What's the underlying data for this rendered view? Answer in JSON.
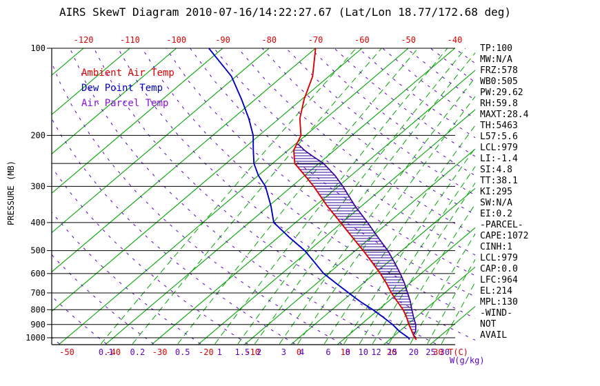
{
  "title": "AIRS SkewT Diagram 2010-07-16/14:22:27.67 (Lat/Lon 18.77/172.68 deg)",
  "legend": {
    "ambient": "Ambient Air Temp",
    "dew": "Dew Point Temp",
    "parcel": "Air Parcel Temp"
  },
  "axes": {
    "pressure_label": "PRESSURE (MB)",
    "pressure_ticks": [
      100,
      200,
      300,
      400,
      500,
      600,
      700,
      800,
      900,
      1000
    ],
    "extra_pressure_lines": [
      250
    ],
    "top_temp_labels": [
      -120,
      -110,
      -100,
      -90,
      -80,
      -70,
      -60,
      -50,
      -40
    ],
    "bottom_temp_labels": [
      -50,
      -40,
      -30,
      -20,
      -10,
      0,
      10,
      20,
      30
    ],
    "mixing_ratio_labels": [
      0.1,
      0.2,
      0.5,
      1,
      1.5,
      2,
      3,
      4,
      6,
      8,
      10,
      12,
      15,
      20,
      25,
      30
    ],
    "temp_unit_label": "T(C)",
    "mixing_unit_label": "W(g/kg)"
  },
  "stats_panel": [
    "TP:100",
    "MW:N/A",
    "FRZ:578",
    "WB0:505",
    "PW:29.62",
    "RH:59.8",
    "MAXT:28.4",
    "TH:5463",
    "L57:5.6",
    "LCL:979",
    "LI:-1.4",
    "SI:4.8",
    "TT:38.1",
    "KI:295",
    "SW:N/A",
    "EI:0.2",
    "-PARCEL-",
    "CAPE:1072",
    "CINH:1",
    "LCL:979",
    "CAP:0.0",
    "LFC:964",
    "EL:214",
    "MPL:130",
    "-WIND-",
    "NOT",
    "AVAIL"
  ],
  "colors": {
    "background": "#ffffff",
    "isotherm": "#00a400",
    "mixing_ratio": "#00a400",
    "dry_adiabat": "#5a00c8",
    "ambient": "#dd0000",
    "dew_point": "#0000c0",
    "parcel": "#3a00a0",
    "hatch": "#2e0096",
    "legend_parcel": "#8a10e0",
    "temp_labels": "#dd0000",
    "mixing_labels": "#5a00c8",
    "axis": "#000000"
  },
  "chart_data": {
    "type": "line",
    "title": "AIRS SkewT Diagram 2010-07-16/14:22:27.67 (Lat/Lon 18.77/172.68 deg)",
    "xlabel": "T(C)",
    "ylabel": "PRESSURE (MB)",
    "y_scale": "log-inverted",
    "pressure_range_mb": [
      100,
      1050
    ],
    "skew": "isotherms slope up-right about 45deg",
    "series": [
      {
        "name": "Ambient Air Temp",
        "color_key": "ambient",
        "points_pressure_mb_temp_C": [
          [
            100,
            -70
          ],
          [
            125,
            -63.5
          ],
          [
            150,
            -59.5
          ],
          [
            175,
            -55.5
          ],
          [
            200,
            -51
          ],
          [
            225,
            -48.8
          ],
          [
            250,
            -45.2
          ],
          [
            275,
            -40
          ],
          [
            300,
            -35.3
          ],
          [
            350,
            -27.5
          ],
          [
            400,
            -20.3
          ],
          [
            450,
            -14
          ],
          [
            500,
            -8.3
          ],
          [
            550,
            -3.3
          ],
          [
            600,
            1.2
          ],
          [
            650,
            5.1
          ],
          [
            700,
            8.5
          ],
          [
            750,
            12
          ],
          [
            800,
            15.3
          ],
          [
            850,
            18
          ],
          [
            900,
            20.3
          ],
          [
            950,
            22.7
          ],
          [
            1000,
            24.9
          ],
          [
            1015,
            25.8
          ]
        ]
      },
      {
        "name": "Dew Point Temp",
        "color_key": "dew_point",
        "points_pressure_mb_temp_C": [
          [
            100,
            -93
          ],
          [
            125,
            -81
          ],
          [
            150,
            -73
          ],
          [
            175,
            -66.5
          ],
          [
            200,
            -61.3
          ],
          [
            225,
            -57.5
          ],
          [
            250,
            -54
          ],
          [
            275,
            -50
          ],
          [
            300,
            -45.7
          ],
          [
            350,
            -39.6
          ],
          [
            400,
            -34.7
          ],
          [
            450,
            -27.6
          ],
          [
            500,
            -20.9
          ],
          [
            550,
            -15.7
          ],
          [
            600,
            -11
          ],
          [
            650,
            -5.7
          ],
          [
            700,
            -0.7
          ],
          [
            750,
            4
          ],
          [
            800,
            8.8
          ],
          [
            850,
            13
          ],
          [
            900,
            16.8
          ],
          [
            950,
            20
          ],
          [
            1000,
            23.6
          ],
          [
            1015,
            24.3
          ]
        ]
      },
      {
        "name": "Air Parcel Temp",
        "color_key": "parcel",
        "points_pressure_mb_temp_C": [
          [
            214,
            -49.5
          ],
          [
            225,
            -46.5
          ],
          [
            235,
            -43.5
          ],
          [
            250,
            -39
          ],
          [
            275,
            -33.5
          ],
          [
            300,
            -29
          ],
          [
            350,
            -21.5
          ],
          [
            400,
            -14.5
          ],
          [
            450,
            -8.5
          ],
          [
            500,
            -3
          ],
          [
            550,
            1.5
          ],
          [
            600,
            5.5
          ],
          [
            650,
            9
          ],
          [
            700,
            12
          ],
          [
            750,
            14.8
          ],
          [
            800,
            17.2
          ],
          [
            850,
            19.5
          ],
          [
            900,
            21.8
          ],
          [
            950,
            23.5
          ],
          [
            979,
            24
          ],
          [
            1000,
            25.2
          ]
        ]
      }
    ],
    "cape_hatch_between_mb": [
      215,
      985
    ],
    "gridlines": {
      "isotherms_C": {
        "min": -160,
        "max": 40,
        "step": 10
      },
      "mixing_ratio_g_kg": [
        0.1,
        0.2,
        0.5,
        1,
        1.5,
        2,
        3,
        4,
        6,
        8,
        10,
        12,
        15,
        20,
        25,
        30
      ],
      "dry_adiabats_theta_K": {
        "min": 220,
        "max": 460,
        "step": 10
      }
    }
  }
}
